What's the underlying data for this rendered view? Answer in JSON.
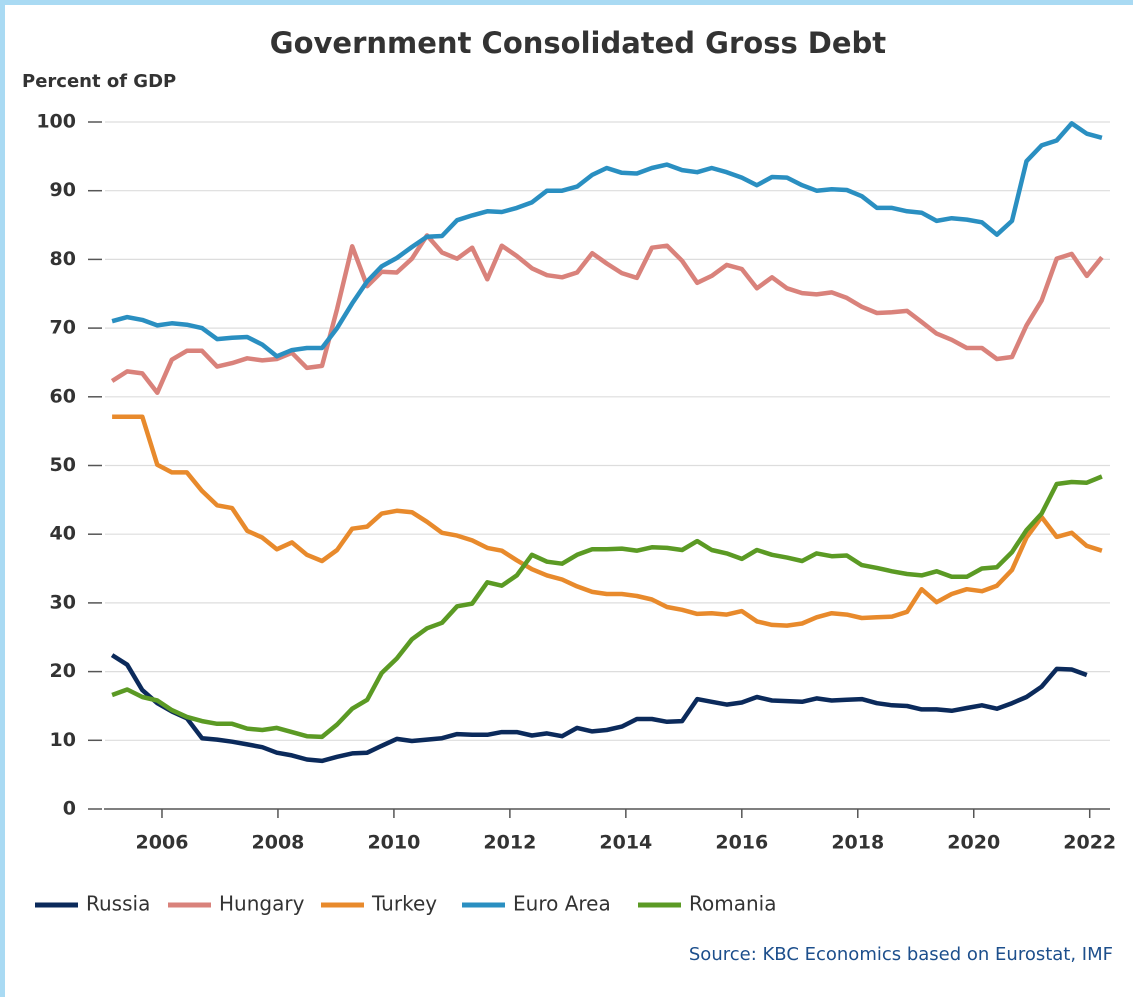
{
  "chart_data": {
    "type": "line",
    "title": "Government Consolidated Gross Debt",
    "y_label": "Percent of GDP",
    "source": "Source: KBC Economics based on Eurostat, IMF",
    "x": [
      2005.14,
      2005.4,
      2005.66,
      2005.92,
      2006.17,
      2006.43,
      2006.69,
      2006.95,
      2007.21,
      2007.47,
      2007.73,
      2007.98,
      2008.24,
      2008.5,
      2008.76,
      2009.02,
      2009.28,
      2009.54,
      2009.79,
      2010.05,
      2010.31,
      2010.57,
      2010.83,
      2011.09,
      2011.35,
      2011.61,
      2011.86,
      2012.12,
      2012.38,
      2012.64,
      2012.9,
      2013.16,
      2013.42,
      2013.67,
      2013.93,
      2014.19,
      2014.45,
      2014.71,
      2014.97,
      2015.23,
      2015.48,
      2015.74,
      2016.0,
      2016.26,
      2016.52,
      2016.78,
      2017.04,
      2017.29,
      2017.55,
      2017.81,
      2018.07,
      2018.33,
      2018.59,
      2018.85,
      2019.1,
      2019.36,
      2019.62,
      2019.88,
      2020.14,
      2020.4,
      2020.66,
      2020.91,
      2021.17,
      2021.43,
      2021.69,
      2021.95,
      2022.21
    ],
    "series": [
      {
        "name": "Russia",
        "color": "#0b2a5b",
        "values": [
          22.4,
          21,
          17.3,
          15.4,
          14.2,
          13.2,
          10.3,
          10.1,
          9.8,
          9.4,
          9,
          8.2,
          7.8,
          7.2,
          7,
          7.6,
          8.1,
          8.2,
          9.2,
          10.2,
          9.9,
          10.1,
          10.3,
          10.9,
          10.8,
          10.8,
          11.2,
          11.2,
          10.7,
          11,
          10.6,
          11.8,
          11.3,
          11.5,
          12,
          13.1,
          13.1,
          12.7,
          12.8,
          16,
          15.6,
          15.2,
          15.5,
          16.3,
          15.8,
          15.7,
          15.6,
          16.1,
          15.8,
          15.9,
          16,
          15.4,
          15.1,
          15,
          14.5,
          14.5,
          14.3,
          14.7,
          15.1,
          14.6,
          15.4,
          16.3,
          17.8,
          20.4,
          20.3,
          19.5,
          null
        ]
      },
      {
        "name": "Hungary",
        "color": "#d9827b",
        "values": [
          62.3,
          63.7,
          63.4,
          60.6,
          65.4,
          66.7,
          66.7,
          64.4,
          64.9,
          65.6,
          65.3,
          65.5,
          66.4,
          64.2,
          64.5,
          72.8,
          81.9,
          76.1,
          78.2,
          78.1,
          80.1,
          83.5,
          81,
          80.1,
          81.7,
          77.1,
          82,
          80.5,
          78.7,
          77.7,
          77.4,
          78.1,
          80.9,
          79.4,
          78,
          77.3,
          81.7,
          82,
          79.8,
          76.6,
          77.6,
          79.2,
          78.6,
          75.8,
          77.4,
          75.8,
          75.1,
          74.9,
          75.2,
          74.4,
          73.1,
          72.2,
          72.3,
          72.5,
          70.9,
          69.2,
          68.3,
          67.1,
          67.1,
          65.5,
          65.8,
          70.4,
          74,
          80.1,
          80.8,
          77.6,
          80.3
        ]
      },
      {
        "name": "Turkey",
        "color": "#e88a2c",
        "values": [
          57.1,
          57.1,
          57.1,
          50.1,
          49,
          49,
          46.3,
          44.2,
          43.8,
          40.5,
          39.5,
          37.8,
          38.8,
          37,
          36.1,
          37.7,
          40.8,
          41.1,
          43,
          43.4,
          43.2,
          41.8,
          40.2,
          39.8,
          39.1,
          38,
          37.6,
          36.2,
          34.9,
          34,
          33.4,
          32.4,
          31.6,
          31.3,
          31.3,
          31,
          30.5,
          29.4,
          29,
          28.4,
          28.5,
          28.3,
          28.8,
          27.3,
          26.8,
          26.7,
          27,
          27.9,
          28.5,
          28.3,
          27.8,
          27.9,
          28,
          28.7,
          32,
          30.1,
          31.3,
          32,
          31.7,
          32.5,
          34.8,
          39.5,
          42.5,
          39.6,
          40.2,
          38.3,
          37.6
        ]
      },
      {
        "name": "Euro Area",
        "color": "#2a8fc1",
        "values": [
          71,
          71.6,
          71.2,
          70.4,
          70.7,
          70.5,
          70,
          68.4,
          68.6,
          68.7,
          67.6,
          65.9,
          66.8,
          67.1,
          67.1,
          70,
          73.6,
          76.8,
          79,
          80.2,
          81.8,
          83.3,
          83.4,
          85.7,
          86.4,
          87,
          86.9,
          87.5,
          88.3,
          90,
          90,
          90.6,
          92.3,
          93.3,
          92.6,
          92.5,
          93.3,
          93.8,
          93,
          92.7,
          93.3,
          92.7,
          91.9,
          90.8,
          92,
          91.9,
          90.8,
          90,
          90.2,
          90.1,
          89.2,
          87.5,
          87.5,
          87,
          86.8,
          85.6,
          86,
          85.8,
          85.4,
          83.6,
          85.6,
          94.3,
          96.6,
          97.3,
          99.8,
          98.3,
          97.7
        ]
      },
      {
        "name": "Romania",
        "color": "#5b9a24",
        "values": [
          16.6,
          17.4,
          16.3,
          15.8,
          14.4,
          13.4,
          12.8,
          12.4,
          12.4,
          11.7,
          11.5,
          11.8,
          11.2,
          10.6,
          10.5,
          12.3,
          14.6,
          15.9,
          19.8,
          21.9,
          24.7,
          26.3,
          27.1,
          29.5,
          29.9,
          33,
          32.5,
          34,
          37,
          36,
          35.7,
          37,
          37.8,
          37.8,
          37.9,
          37.6,
          38.1,
          38,
          37.7,
          39,
          37.7,
          37.2,
          36.4,
          37.7,
          37,
          36.6,
          36.1,
          37.2,
          36.8,
          36.9,
          35.5,
          35.1,
          34.6,
          34.2,
          34,
          34.6,
          33.8,
          33.8,
          35,
          35.2,
          37.4,
          40.6,
          43,
          47.3,
          47.6,
          47.5,
          48.4
        ]
      }
    ],
    "xlim": [
      2005,
      2022.35
    ],
    "xticks": [
      2006,
      2008,
      2010,
      2012,
      2014,
      2016,
      2018,
      2020,
      2022
    ],
    "ylim": [
      0,
      100
    ],
    "yticks": [
      0,
      10,
      20,
      30,
      40,
      50,
      60,
      70,
      80,
      90,
      100
    ],
    "grid": true,
    "legend": "bottom"
  }
}
